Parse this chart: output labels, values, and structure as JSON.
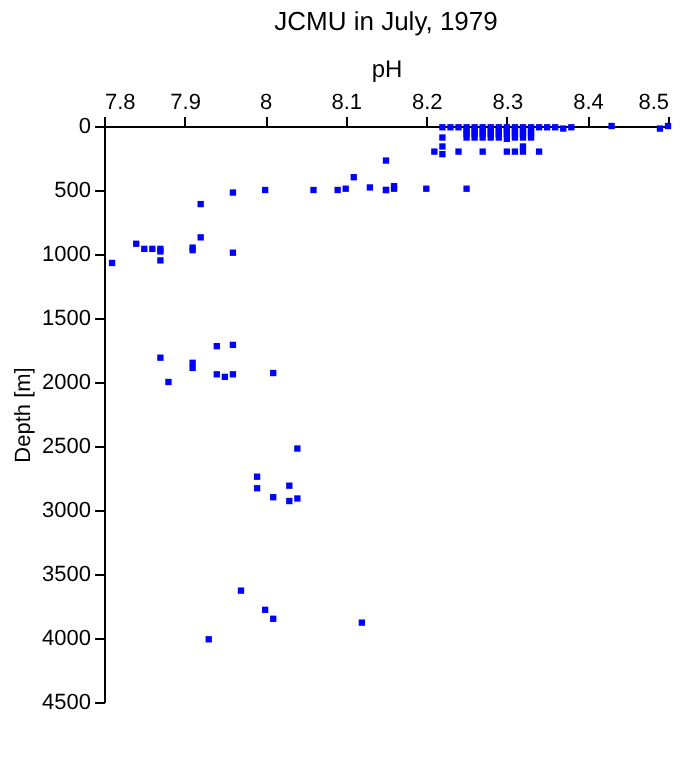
{
  "chart_data": {
    "type": "scatter",
    "title": "JCMU in July, 1979",
    "xlabel": "pH",
    "ylabel": "Depth [m]",
    "xlim": [
      7.8,
      8.5
    ],
    "xticks": [
      7.8,
      7.9,
      8,
      8.1,
      8.2,
      8.3,
      8.4,
      8.5
    ],
    "ylim": [
      4500,
      0
    ],
    "yticks": [
      0,
      500,
      1000,
      1500,
      2000,
      2500,
      3000,
      3500,
      4000,
      4500
    ],
    "grid": false,
    "legend": false,
    "marker": "square",
    "series": [
      {
        "color": "#0000ff",
        "x": [
          8.22,
          8.23,
          8.24,
          8.25,
          8.26,
          8.27,
          8.28,
          8.29,
          8.3,
          8.31,
          8.32,
          8.33,
          8.34,
          8.35,
          8.36,
          8.37,
          8.38,
          8.43,
          8.49,
          8.5,
          8.25,
          8.26,
          8.27,
          8.28,
          8.29,
          8.3,
          8.31,
          8.32,
          8.33,
          8.25,
          8.26,
          8.27,
          8.28,
          8.29,
          8.3,
          8.31,
          8.32,
          8.33,
          8.22,
          8.25,
          8.26,
          8.27,
          8.28,
          8.29,
          8.3,
          8.31,
          8.32,
          8.33,
          8.22,
          8.32,
          8.21,
          8.24,
          8.27,
          8.3,
          8.31,
          8.32,
          8.34,
          8.22,
          8.15,
          8.16,
          8.2,
          8.15,
          8.25,
          7.81,
          7.96,
          7.92,
          7.92,
          7.84,
          7.85,
          7.86,
          7.87,
          7.87,
          7.87,
          7.91,
          7.91,
          7.96,
          8.0,
          8.06,
          8.09,
          8.1,
          8.11,
          8.13,
          8.15,
          8.16,
          7.87,
          7.91,
          7.94,
          7.96,
          7.88,
          7.91,
          7.94,
          7.95,
          7.96,
          8.01,
          8.04,
          7.99,
          7.99,
          8.01,
          8.03,
          8.03,
          8.04,
          7.97,
          8.0,
          8.01,
          8.12,
          7.93
        ],
        "values": [
          10,
          10,
          10,
          10,
          10,
          10,
          10,
          10,
          10,
          10,
          10,
          10,
          10,
          10,
          10,
          20,
          10,
          0,
          20,
          0,
          40,
          40,
          40,
          40,
          40,
          40,
          40,
          40,
          40,
          60,
          60,
          60,
          60,
          60,
          60,
          60,
          60,
          60,
          90,
          90,
          90,
          90,
          90,
          90,
          100,
          90,
          90,
          90,
          160,
          160,
          200,
          200,
          200,
          200,
          200,
          200,
          200,
          220,
          270,
          470,
          490,
          500,
          490,
          1070,
          520,
          610,
          870,
          920,
          960,
          960,
          960,
          980,
          1050,
          950,
          970,
          990,
          500,
          500,
          500,
          490,
          400,
          480,
          500,
          490,
          1810,
          1850,
          1720,
          1710,
          2000,
          1890,
          1940,
          1960,
          1940,
          1930,
          2520,
          2740,
          2830,
          2900,
          2810,
          2930,
          2910,
          3630,
          3780,
          3850,
          3880,
          4010
        ]
      }
    ]
  }
}
